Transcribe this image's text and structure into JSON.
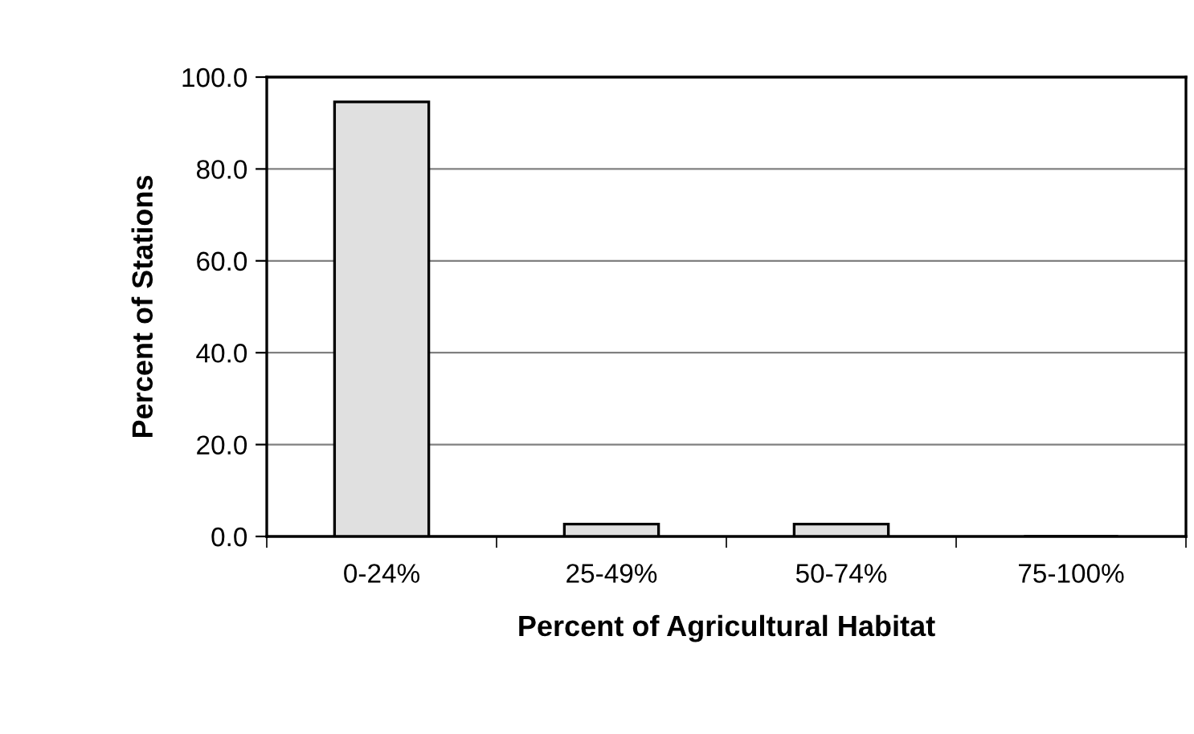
{
  "chart_data": {
    "type": "bar",
    "xlabel": "Percent of Agricultural Habitat",
    "ylabel": "Percent of Stations",
    "categories": [
      "0-24%",
      "25-49%",
      "50-74%",
      "75-100%"
    ],
    "values": [
      94.6,
      2.7,
      2.7,
      0
    ],
    "color": "#e0e0e0",
    "ylim": [
      0,
      100
    ],
    "yticks": [
      {
        "value": 0,
        "label": "0.0"
      },
      {
        "value": 20,
        "label": "20.0"
      },
      {
        "value": 40,
        "label": "40.0"
      },
      {
        "value": 60,
        "label": "60.0"
      },
      {
        "value": 80,
        "label": "80.0"
      },
      {
        "value": 100,
        "label": "100.0"
      }
    ],
    "grid": "y"
  }
}
